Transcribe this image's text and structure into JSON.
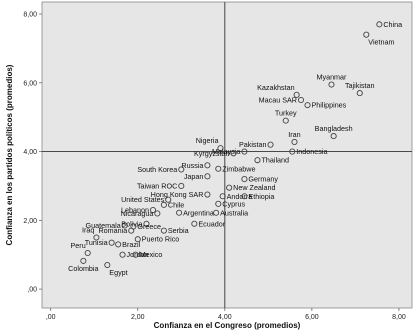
{
  "chart_data": {
    "type": "scatter",
    "title": "",
    "xlabel": "Confianza en el Congreso (promedios)",
    "ylabel": "Confianza en los partidos políticos (promedios)",
    "xlim": [
      -0.2,
      8.3
    ],
    "ylim": [
      -0.55,
      8.35
    ],
    "x_ticks": [
      0,
      2,
      4,
      6,
      8
    ],
    "y_ticks": [
      0,
      2,
      4,
      6,
      8
    ],
    "x_tick_labels": [
      ",00",
      "2,00",
      "4,00",
      "6,00",
      "8,00"
    ],
    "y_tick_labels": [
      ",00",
      "2,00",
      "4,00",
      "6,00",
      "8,00"
    ],
    "reference_lines": {
      "x": 4.0,
      "y": 4.0
    },
    "grid": false,
    "colors": {
      "plot_bg": "#e6e6e6",
      "marker": "#444444",
      "ref_line": "#333333"
    },
    "points": [
      {
        "label": "China",
        "x": 7.55,
        "y": 7.7,
        "pos": "right"
      },
      {
        "label": "Vietnam",
        "x": 7.25,
        "y": 7.4,
        "pos": "below-right"
      },
      {
        "label": "Myanmar",
        "x": 6.45,
        "y": 5.95,
        "pos": "above"
      },
      {
        "label": "Tajikistan",
        "x": 7.1,
        "y": 5.7,
        "pos": "above"
      },
      {
        "label": "Kazakhstan",
        "x": 5.65,
        "y": 5.65,
        "pos": "above-left"
      },
      {
        "label": "Macau SAR",
        "x": 5.75,
        "y": 5.5,
        "pos": "left"
      },
      {
        "label": "Philippines",
        "x": 5.9,
        "y": 5.35,
        "pos": "right"
      },
      {
        "label": "Turkey",
        "x": 5.4,
        "y": 4.9,
        "pos": "above"
      },
      {
        "label": "Bangladesh",
        "x": 6.5,
        "y": 4.45,
        "pos": "above"
      },
      {
        "label": "Pakistan",
        "x": 5.05,
        "y": 4.2,
        "pos": "left"
      },
      {
        "label": "Iran",
        "x": 5.6,
        "y": 4.28,
        "pos": "above"
      },
      {
        "label": "Indonesia",
        "x": 5.55,
        "y": 4.0,
        "pos": "right"
      },
      {
        "label": "Nigeria",
        "x": 3.9,
        "y": 4.1,
        "pos": "above-left"
      },
      {
        "label": "Malaysia",
        "x": 4.45,
        "y": 4.0,
        "pos": "left"
      },
      {
        "label": "Thailand",
        "x": 4.75,
        "y": 3.75,
        "pos": "right"
      },
      {
        "label": "Kyrgyzstan",
        "x": 4.2,
        "y": 3.95,
        "pos": "left"
      },
      {
        "label": "Russia",
        "x": 3.6,
        "y": 3.6,
        "pos": "left"
      },
      {
        "label": "Zimbabwe",
        "x": 3.85,
        "y": 3.5,
        "pos": "right"
      },
      {
        "label": "South Korea",
        "x": 3.0,
        "y": 3.48,
        "pos": "left"
      },
      {
        "label": "Japan",
        "x": 3.6,
        "y": 3.28,
        "pos": "left"
      },
      {
        "label": "Germany",
        "x": 4.45,
        "y": 3.2,
        "pos": "right"
      },
      {
        "label": "Taiwan ROC",
        "x": 3.0,
        "y": 3.0,
        "pos": "left"
      },
      {
        "label": "New Zealand",
        "x": 4.1,
        "y": 2.95,
        "pos": "right"
      },
      {
        "label": "United States",
        "x": 2.7,
        "y": 2.6,
        "pos": "left"
      },
      {
        "label": "Hong Kong SAR",
        "x": 3.6,
        "y": 2.75,
        "pos": "left"
      },
      {
        "label": "Andorra",
        "x": 3.95,
        "y": 2.7,
        "pos": "right"
      },
      {
        "label": "Ethiopia",
        "x": 4.45,
        "y": 2.7,
        "pos": "right"
      },
      {
        "label": "Lebanon",
        "x": 2.35,
        "y": 2.3,
        "pos": "left"
      },
      {
        "label": "Chile",
        "x": 2.6,
        "y": 2.45,
        "pos": "right"
      },
      {
        "label": "Cyprus",
        "x": 3.85,
        "y": 2.48,
        "pos": "right"
      },
      {
        "label": "Nicaragua",
        "x": 2.45,
        "y": 2.2,
        "pos": "left"
      },
      {
        "label": "Argentina",
        "x": 2.95,
        "y": 2.22,
        "pos": "right"
      },
      {
        "label": "Australia",
        "x": 3.8,
        "y": 2.22,
        "pos": "right"
      },
      {
        "label": "Guatemala",
        "x": 1.7,
        "y": 1.85,
        "pos": "left"
      },
      {
        "label": "Bolivia",
        "x": 2.2,
        "y": 1.9,
        "pos": "left"
      },
      {
        "label": "Greece",
        "x": 1.9,
        "y": 1.82,
        "pos": "right"
      },
      {
        "label": "Ecuador",
        "x": 3.3,
        "y": 1.9,
        "pos": "right"
      },
      {
        "label": "Romania",
        "x": 1.85,
        "y": 1.7,
        "pos": "left"
      },
      {
        "label": "Serbia",
        "x": 2.6,
        "y": 1.7,
        "pos": "right"
      },
      {
        "label": "Iraq",
        "x": 1.05,
        "y": 1.5,
        "pos": "above-left"
      },
      {
        "label": "Puerto Rico",
        "x": 2.0,
        "y": 1.45,
        "pos": "right"
      },
      {
        "label": "Tunisia",
        "x": 1.4,
        "y": 1.35,
        "pos": "left"
      },
      {
        "label": "Brazil",
        "x": 1.55,
        "y": 1.3,
        "pos": "right"
      },
      {
        "label": "Peru",
        "x": 0.85,
        "y": 1.05,
        "pos": "above-left"
      },
      {
        "label": "Jordan",
        "x": 1.65,
        "y": 1.0,
        "pos": "right"
      },
      {
        "label": "Mexico",
        "x": 1.95,
        "y": 1.0,
        "pos": "right"
      },
      {
        "label": "Colombia",
        "x": 0.75,
        "y": 0.82,
        "pos": "below"
      },
      {
        "label": "Egypt",
        "x": 1.3,
        "y": 0.7,
        "pos": "below-right"
      }
    ]
  }
}
